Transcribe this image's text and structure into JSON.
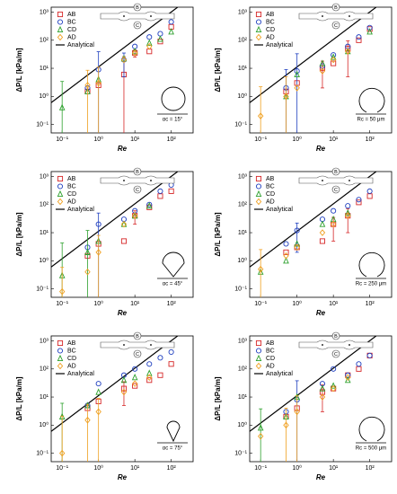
{
  "chart_data": [
    {
      "type": "scatter",
      "log_x": true,
      "log_y": true,
      "x_label": "Re",
      "y_label": "ΔP/L [kPa/m]",
      "annotation": "αc = 15°",
      "inset": "angle",
      "schematic_labels": [
        "B",
        "C"
      ],
      "xlim": [
        0.05,
        400
      ],
      "ylim": [
        0.05,
        1500
      ],
      "xticks": [
        {
          "value": 0.1,
          "label": "10⁻¹"
        },
        {
          "value": 1,
          "label": "10⁰"
        },
        {
          "value": 10,
          "label": "10¹"
        },
        {
          "value": 100,
          "label": "10²"
        }
      ],
      "yticks": [
        {
          "value": 0.1,
          "label": "10⁻¹"
        },
        {
          "value": 1,
          "label": "10⁰"
        },
        {
          "value": 10,
          "label": "10¹"
        },
        {
          "value": 100,
          "label": "10²"
        },
        {
          "value": 1000,
          "label": "10³"
        }
      ],
      "x": [
        0.1,
        0.5,
        1,
        5,
        10,
        25,
        50,
        100
      ],
      "series": [
        {
          "name": "AB",
          "color": "#d62728",
          "marker": "square",
          "values": [
            null,
            1.5,
            2.5,
            6,
            35,
            40,
            90,
            300
          ],
          "errors": [
            null,
            null,
            null,
            20,
            10,
            null,
            null,
            null
          ]
        },
        {
          "name": "BC",
          "color": "#1f3fbf",
          "marker": "circle",
          "values": [
            null,
            2,
            9,
            20,
            60,
            130,
            170,
            450
          ],
          "errors": [
            null,
            null,
            30,
            15,
            null,
            null,
            null,
            null
          ]
        },
        {
          "name": "CD",
          "color": "#2ca02c",
          "marker": "triangle",
          "values": [
            0.4,
            1.5,
            4,
            22,
            40,
            80,
            110,
            200
          ],
          "errors": [
            3,
            null,
            null,
            null,
            null,
            null,
            null,
            null
          ]
        },
        {
          "name": "AD",
          "color": "#f0a020",
          "marker": "diamond",
          "values": [
            null,
            2.5,
            3,
            20,
            35,
            60,
            null,
            null
          ],
          "errors": [
            null,
            6,
            8,
            null,
            null,
            null,
            null,
            null
          ]
        }
      ],
      "analytical": {
        "name": "Analytical",
        "color": "#000000",
        "x": [
          0.05,
          150
        ],
        "values": [
          0.6,
          1500
        ]
      }
    },
    {
      "type": "scatter",
      "log_x": true,
      "log_y": true,
      "x_label": "Re",
      "y_label": "ΔP/L [kPa/m]",
      "annotation": "Rc = 50 μm",
      "inset": "round",
      "schematic_labels": [
        "B",
        "C"
      ],
      "xlim": [
        0.05,
        400
      ],
      "ylim": [
        0.05,
        1500
      ],
      "xticks": [
        {
          "value": 0.1,
          "label": "10⁻¹"
        },
        {
          "value": 1,
          "label": "10⁰"
        },
        {
          "value": 10,
          "label": "10¹"
        },
        {
          "value": 100,
          "label": "10²"
        }
      ],
      "yticks": [
        {
          "value": 0.1,
          "label": "10⁻¹"
        },
        {
          "value": 1,
          "label": "10⁰"
        },
        {
          "value": 10,
          "label": "10¹"
        },
        {
          "value": 100,
          "label": "10²"
        },
        {
          "value": 1000,
          "label": "10³"
        }
      ],
      "x": [
        0.1,
        0.5,
        1,
        5,
        10,
        25,
        50,
        100
      ],
      "series": [
        {
          "name": "AB",
          "color": "#d62728",
          "marker": "square",
          "values": [
            null,
            1.5,
            3,
            10,
            15,
            50,
            100,
            250
          ],
          "errors": [
            null,
            null,
            null,
            8,
            null,
            45,
            null,
            null
          ]
        },
        {
          "name": "BC",
          "color": "#1f3fbf",
          "marker": "circle",
          "values": [
            null,
            2,
            8,
            12,
            30,
            60,
            130,
            280
          ],
          "errors": [
            null,
            7,
            25,
            null,
            null,
            null,
            null,
            null
          ]
        },
        {
          "name": "CD",
          "color": "#2ca02c",
          "marker": "triangle",
          "values": [
            null,
            1,
            6,
            15,
            25,
            40,
            null,
            200
          ],
          "errors": [
            null,
            null,
            null,
            null,
            null,
            null,
            null,
            null
          ]
        },
        {
          "name": "AD",
          "color": "#f0a020",
          "marker": "diamond",
          "values": [
            0.2,
            1,
            2,
            8,
            20,
            40,
            null,
            null
          ],
          "errors": [
            2,
            4,
            null,
            null,
            null,
            null,
            null,
            null
          ]
        }
      ],
      "analytical": {
        "name": "Analytical",
        "color": "#000000",
        "x": [
          0.05,
          150
        ],
        "values": [
          0.6,
          1500
        ]
      }
    },
    {
      "type": "scatter",
      "log_x": true,
      "log_y": true,
      "x_label": "Re",
      "y_label": "ΔP/L [kPa/m]",
      "annotation": "αc = 45°",
      "inset": "drop",
      "schematic_labels": [
        "B",
        "C"
      ],
      "xlim": [
        0.05,
        400
      ],
      "ylim": [
        0.05,
        1500
      ],
      "xticks": [
        {
          "value": 0.1,
          "label": "10⁻¹"
        },
        {
          "value": 1,
          "label": "10⁰"
        },
        {
          "value": 10,
          "label": "10¹"
        },
        {
          "value": 100,
          "label": "10²"
        }
      ],
      "yticks": [
        {
          "value": 0.1,
          "label": "10⁻¹"
        },
        {
          "value": 1,
          "label": "10⁰"
        },
        {
          "value": 10,
          "label": "10¹"
        },
        {
          "value": 100,
          "label": "10²"
        },
        {
          "value": 1000,
          "label": "10³"
        }
      ],
      "x": [
        0.1,
        0.5,
        1,
        5,
        10,
        25,
        50,
        100
      ],
      "series": [
        {
          "name": "AB",
          "color": "#d62728",
          "marker": "square",
          "values": [
            null,
            1.5,
            4,
            5,
            40,
            80,
            200,
            300
          ],
          "errors": [
            null,
            null,
            null,
            null,
            20,
            null,
            null,
            null
          ]
        },
        {
          "name": "BC",
          "color": "#1f3fbf",
          "marker": "circle",
          "values": [
            null,
            3,
            20,
            30,
            60,
            100,
            300,
            500
          ],
          "errors": [
            null,
            null,
            30,
            null,
            null,
            null,
            null,
            null
          ]
        },
        {
          "name": "CD",
          "color": "#2ca02c",
          "marker": "triangle",
          "values": [
            0.3,
            2,
            5,
            20,
            40,
            90,
            null,
            null
          ],
          "errors": [
            4,
            10,
            null,
            null,
            null,
            null,
            null,
            null
          ]
        },
        {
          "name": "AD",
          "color": "#f0a020",
          "marker": "diamond",
          "values": [
            0.08,
            0.4,
            2,
            20,
            40,
            null,
            null,
            null
          ],
          "errors": [
            0.5,
            null,
            6,
            null,
            null,
            null,
            null,
            null
          ]
        }
      ],
      "analytical": {
        "name": "Analytical",
        "color": "#000000",
        "x": [
          0.05,
          150
        ],
        "values": [
          0.6,
          1500
        ]
      }
    },
    {
      "type": "scatter",
      "log_x": true,
      "log_y": true,
      "x_label": "Re",
      "y_label": "ΔP/L [kPa/m]",
      "annotation": "Rc = 250 μm",
      "inset": "round",
      "schematic_labels": [
        "B",
        "C"
      ],
      "xlim": [
        0.05,
        400
      ],
      "ylim": [
        0.05,
        1500
      ],
      "xticks": [
        {
          "value": 0.1,
          "label": "10⁻¹"
        },
        {
          "value": 1,
          "label": "10⁰"
        },
        {
          "value": 10,
          "label": "10¹"
        },
        {
          "value": 100,
          "label": "10²"
        }
      ],
      "yticks": [
        {
          "value": 0.1,
          "label": "10⁻¹"
        },
        {
          "value": 1,
          "label": "10⁰"
        },
        {
          "value": 10,
          "label": "10¹"
        },
        {
          "value": 100,
          "label": "10²"
        },
        {
          "value": 1000,
          "label": "10³"
        }
      ],
      "x": [
        0.1,
        0.5,
        1,
        5,
        10,
        25,
        50,
        100
      ],
      "series": [
        {
          "name": "AB",
          "color": "#d62728",
          "marker": "square",
          "values": [
            null,
            2,
            3,
            5,
            20,
            40,
            120,
            200
          ],
          "errors": [
            null,
            null,
            null,
            null,
            15,
            30,
            null,
            null
          ]
        },
        {
          "name": "BC",
          "color": "#1f3fbf",
          "marker": "circle",
          "values": [
            null,
            4,
            12,
            30,
            60,
            90,
            150,
            300
          ],
          "errors": [
            null,
            null,
            10,
            null,
            null,
            null,
            null,
            null
          ]
        },
        {
          "name": "CD",
          "color": "#2ca02c",
          "marker": "triangle",
          "values": [
            0.4,
            1,
            4,
            20,
            30,
            50,
            null,
            null
          ],
          "errors": [
            null,
            null,
            null,
            null,
            null,
            null,
            null,
            null
          ]
        },
        {
          "name": "AD",
          "color": "#f0a020",
          "marker": "diamond",
          "values": [
            0.5,
            1.5,
            3,
            10,
            20,
            40,
            null,
            null
          ],
          "errors": [
            2,
            null,
            null,
            null,
            null,
            null,
            null,
            null
          ]
        }
      ],
      "analytical": {
        "name": "Analytical",
        "color": "#000000",
        "x": [
          0.05,
          150
        ],
        "values": [
          0.6,
          1500
        ]
      }
    },
    {
      "type": "scatter",
      "log_x": true,
      "log_y": true,
      "x_label": "Re",
      "y_label": "ΔP/L [kPa/m]",
      "annotation": "αc = 75°",
      "inset": "drop",
      "schematic_labels": [
        "B",
        "C"
      ],
      "xlim": [
        0.05,
        400
      ],
      "ylim": [
        0.05,
        1500
      ],
      "xticks": [
        {
          "value": 0.1,
          "label": "10⁻¹"
        },
        {
          "value": 1,
          "label": "10⁰"
        },
        {
          "value": 10,
          "label": "10¹"
        },
        {
          "value": 100,
          "label": "10²"
        }
      ],
      "yticks": [
        {
          "value": 0.1,
          "label": "10⁻¹"
        },
        {
          "value": 1,
          "label": "10⁰"
        },
        {
          "value": 10,
          "label": "10¹"
        },
        {
          "value": 100,
          "label": "10²"
        },
        {
          "value": 1000,
          "label": "10³"
        }
      ],
      "x": [
        0.1,
        0.5,
        1,
        5,
        10,
        25,
        50,
        100
      ],
      "series": [
        {
          "name": "AB",
          "color": "#d62728",
          "marker": "square",
          "values": [
            null,
            4,
            7,
            20,
            25,
            40,
            60,
            150
          ],
          "errors": [
            null,
            null,
            null,
            15,
            null,
            null,
            null,
            null
          ]
        },
        {
          "name": "BC",
          "color": "#1f3fbf",
          "marker": "circle",
          "values": [
            null,
            5,
            30,
            60,
            100,
            150,
            250,
            400
          ],
          "errors": [
            null,
            null,
            null,
            null,
            null,
            null,
            null,
            null
          ]
        },
        {
          "name": "CD",
          "color": "#2ca02c",
          "marker": "triangle",
          "values": [
            2,
            5,
            15,
            40,
            50,
            70,
            null,
            null
          ],
          "errors": [
            4,
            null,
            null,
            null,
            null,
            null,
            null,
            null
          ]
        },
        {
          "name": "AD",
          "color": "#f0a020",
          "marker": "diamond",
          "values": [
            0.1,
            1.5,
            3,
            15,
            30,
            50,
            null,
            null
          ],
          "errors": [
            2,
            4,
            6,
            null,
            null,
            null,
            null,
            null
          ]
        }
      ],
      "analytical": {
        "name": "Analytical",
        "color": "#000000",
        "x": [
          0.05,
          150
        ],
        "values": [
          0.6,
          1500
        ]
      }
    },
    {
      "type": "scatter",
      "log_x": true,
      "log_y": true,
      "x_label": "Re",
      "y_label": "ΔP/L [kPa/m]",
      "annotation": "Rc = 500 μm",
      "inset": "round",
      "schematic_labels": [
        "B",
        "C"
      ],
      "xlim": [
        0.05,
        400
      ],
      "ylim": [
        0.05,
        1500
      ],
      "xticks": [
        {
          "value": 0.1,
          "label": "10⁻¹"
        },
        {
          "value": 1,
          "label": "10⁰"
        },
        {
          "value": 10,
          "label": "10¹"
        },
        {
          "value": 100,
          "label": "10²"
        }
      ],
      "yticks": [
        {
          "value": 0.1,
          "label": "10⁻¹"
        },
        {
          "value": 1,
          "label": "10⁰"
        },
        {
          "value": 10,
          "label": "10¹"
        },
        {
          "value": 100,
          "label": "10²"
        },
        {
          "value": 1000,
          "label": "10³"
        }
      ],
      "x": [
        0.1,
        0.5,
        1,
        5,
        10,
        25,
        50,
        100
      ],
      "series": [
        {
          "name": "AB",
          "color": "#d62728",
          "marker": "square",
          "values": [
            null,
            2,
            4,
            15,
            20,
            60,
            100,
            300
          ],
          "errors": [
            null,
            null,
            null,
            12,
            null,
            null,
            null,
            null
          ]
        },
        {
          "name": "BC",
          "color": "#1f3fbf",
          "marker": "circle",
          "values": [
            null,
            3,
            8,
            30,
            100,
            60,
            150,
            300
          ],
          "errors": [
            null,
            null,
            30,
            null,
            null,
            null,
            null,
            null
          ]
        },
        {
          "name": "CD",
          "color": "#2ca02c",
          "marker": "triangle",
          "values": [
            0.8,
            2,
            10,
            20,
            25,
            40,
            null,
            null
          ],
          "errors": [
            3,
            null,
            null,
            null,
            null,
            null,
            null,
            null
          ]
        },
        {
          "name": "AD",
          "color": "#f0a020",
          "marker": "diamond",
          "values": [
            0.4,
            1,
            3,
            10,
            20,
            50,
            null,
            null
          ],
          "errors": [
            null,
            3,
            8,
            null,
            null,
            null,
            null,
            null
          ]
        }
      ],
      "analytical": {
        "name": "Analytical",
        "color": "#000000",
        "x": [
          0.05,
          150
        ],
        "values": [
          0.6,
          1500
        ]
      }
    }
  ]
}
